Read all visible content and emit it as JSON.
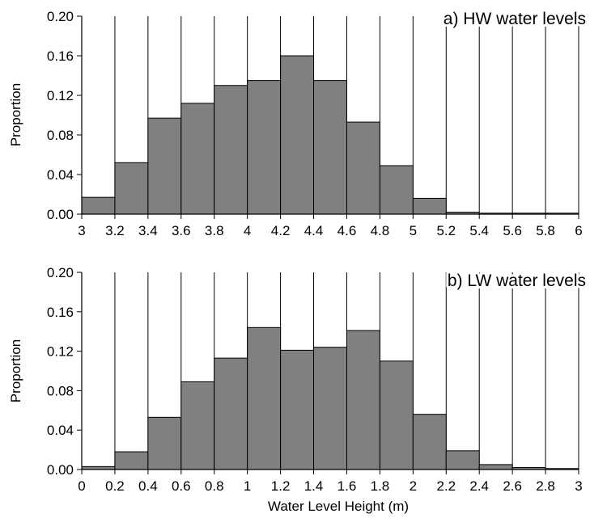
{
  "chart_data": [
    {
      "type": "bar",
      "title": "a) HW water levels",
      "ylabel": "Proportion",
      "xlabel": "",
      "bin_edges": [
        3,
        3.2,
        3.4,
        3.6,
        3.8,
        4,
        4.2,
        4.4,
        4.6,
        4.8,
        5,
        5.2,
        5.4,
        5.6,
        5.8,
        6
      ],
      "values": [
        0.017,
        0.052,
        0.097,
        0.112,
        0.13,
        0.135,
        0.16,
        0.135,
        0.093,
        0.049,
        0.016,
        0.002,
        0.001,
        0.001,
        0.001
      ],
      "xlim": [
        3,
        6
      ],
      "ylim": [
        0,
        0.2
      ],
      "x_ticks": [
        "3",
        "3.2",
        "3.4",
        "3.6",
        "3.8",
        "4",
        "4.2",
        "4.4",
        "4.6",
        "4.8",
        "5",
        "5.2",
        "5.4",
        "5.6",
        "5.8",
        "6"
      ],
      "y_ticks": [
        "0.00",
        "0.04",
        "0.08",
        "0.12",
        "0.16",
        "0.20"
      ],
      "grid": "vertical",
      "bar_color": "#808080"
    },
    {
      "type": "bar",
      "title": "b) LW water levels",
      "ylabel": "Proportion",
      "xlabel": "Water Level Height (m)",
      "bin_edges": [
        0,
        0.2,
        0.4,
        0.6,
        0.8,
        1,
        1.2,
        1.4,
        1.6,
        1.8,
        2,
        2.2,
        2.4,
        2.6,
        2.8,
        3
      ],
      "values": [
        0.003,
        0.018,
        0.053,
        0.089,
        0.113,
        0.144,
        0.121,
        0.124,
        0.141,
        0.11,
        0.056,
        0.019,
        0.005,
        0.002,
        0.001
      ],
      "xlim": [
        0,
        3
      ],
      "ylim": [
        0,
        0.2
      ],
      "x_ticks": [
        "0",
        "0.2",
        "0.4",
        "0.6",
        "0.8",
        "1",
        "1.2",
        "1.4",
        "1.6",
        "1.8",
        "2",
        "2.2",
        "2.4",
        "2.6",
        "2.8",
        "3"
      ],
      "y_ticks": [
        "0.00",
        "0.04",
        "0.08",
        "0.12",
        "0.16",
        "0.20"
      ],
      "grid": "vertical",
      "bar_color": "#808080"
    }
  ]
}
